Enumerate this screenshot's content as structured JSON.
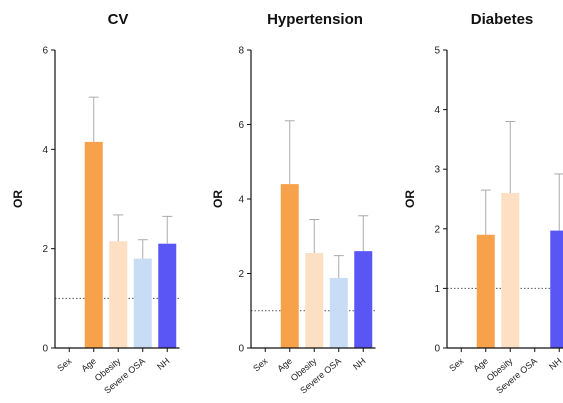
{
  "chart_data": [
    {
      "type": "bar",
      "title": "CV",
      "ylabel": "OR",
      "xlabel": "",
      "ylim": [
        0,
        6
      ],
      "yticks": [
        "0",
        "2",
        "4",
        "6"
      ],
      "categories": [
        "Sex",
        "Age",
        "Obesity",
        "Severe OSA",
        "NH"
      ],
      "values": [
        null,
        4.15,
        2.15,
        1.8,
        2.1
      ],
      "error_upper": [
        null,
        5.05,
        2.68,
        2.18,
        2.65
      ],
      "reference_line": 1,
      "colors": [
        "#f7a24a",
        "#f7a24a",
        "#fde0c4",
        "#c8dcf5",
        "#5a55f5"
      ]
    },
    {
      "type": "bar",
      "title": "Hypertension",
      "ylabel": "OR",
      "xlabel": "",
      "ylim": [
        0,
        8
      ],
      "yticks": [
        "0",
        "2",
        "4",
        "6",
        "8"
      ],
      "categories": [
        "Sex",
        "Age",
        "Obesity",
        "Severe OSA",
        "NH"
      ],
      "values": [
        null,
        4.4,
        2.55,
        1.88,
        2.6
      ],
      "error_upper": [
        null,
        6.1,
        3.45,
        2.48,
        3.55
      ],
      "reference_line": 1,
      "colors": [
        "#f7a24a",
        "#f7a24a",
        "#fde0c4",
        "#c8dcf5",
        "#5a55f5"
      ]
    },
    {
      "type": "bar",
      "title": "Diabetes",
      "ylabel": "OR",
      "xlabel": "",
      "ylim": [
        0,
        5
      ],
      "yticks": [
        "0",
        "1",
        "2",
        "3",
        "4",
        "5"
      ],
      "categories": [
        "Sex",
        "Age",
        "Obesity",
        "Severe OSA",
        "NH"
      ],
      "values": [
        null,
        1.9,
        2.6,
        null,
        1.97
      ],
      "error_upper": [
        null,
        2.65,
        3.8,
        null,
        2.92
      ],
      "reference_line": 1,
      "colors": [
        "#f7a24a",
        "#f7a24a",
        "#fde0c4",
        "#c8dcf5",
        "#5a55f5"
      ]
    }
  ],
  "colors": {
    "error_bar": "#aaaaaa",
    "axis": "#111111",
    "reference_line": "#555555"
  }
}
